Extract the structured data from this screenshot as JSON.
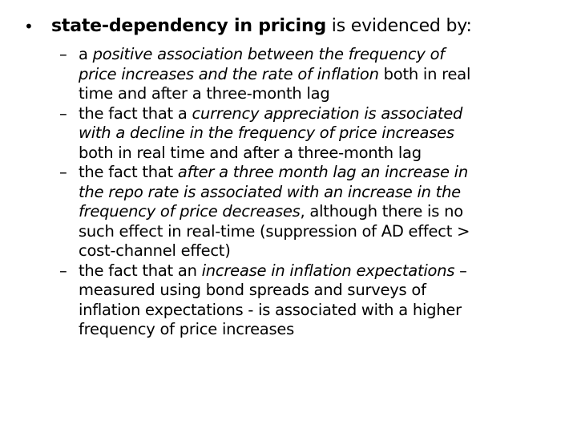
{
  "main_bullet": {
    "bullet": "•",
    "bold_text": "state-dependency in pricing",
    "rest_text": " is evidenced by:"
  },
  "sub_bullets": [
    {
      "dash": "–",
      "lines": [
        [
          {
            "t": "a ",
            "i": false
          },
          {
            "t": "positive association between the frequency of",
            "i": true
          }
        ],
        [
          {
            "t": "price increases and the rate of inflation",
            "i": true
          },
          {
            "t": " both in real",
            "i": false
          }
        ],
        [
          {
            "t": "time and after a three-month lag",
            "i": false
          }
        ]
      ]
    },
    {
      "dash": "–",
      "lines": [
        [
          {
            "t": "the fact that a ",
            "i": false
          },
          {
            "t": "currency appreciation is associated",
            "i": true
          }
        ],
        [
          {
            "t": "with a decline in the frequency of price increases",
            "i": true
          }
        ],
        [
          {
            "t": "both in real time and after a three-month lag",
            "i": false
          }
        ]
      ]
    },
    {
      "dash": "–",
      "lines": [
        [
          {
            "t": "the fact that ",
            "i": false
          },
          {
            "t": "after a three month lag an increase in",
            "i": true
          }
        ],
        [
          {
            "t": "the repo rate is associated with an increase in the",
            "i": true
          }
        ],
        [
          {
            "t": "frequency of price decreases",
            "i": true
          },
          {
            "t": ", although there is no",
            "i": false
          }
        ],
        [
          {
            "t": "such effect in real-time (suppression of AD effect >",
            "i": false
          }
        ],
        [
          {
            "t": "cost-channel effect)",
            "i": false
          }
        ]
      ]
    },
    {
      "dash": "–",
      "lines": [
        [
          {
            "t": "the fact that an ",
            "i": false
          },
          {
            "t": "increase in inflation expectations",
            "i": true
          },
          {
            "t": " –",
            "i": false
          }
        ],
        [
          {
            "t": "measured using bond spreads and surveys of",
            "i": false
          }
        ],
        [
          {
            "t": "inflation expectations - is associated with a higher",
            "i": false
          }
        ],
        [
          {
            "t": "frequency of price increases",
            "i": false
          }
        ]
      ]
    }
  ]
}
